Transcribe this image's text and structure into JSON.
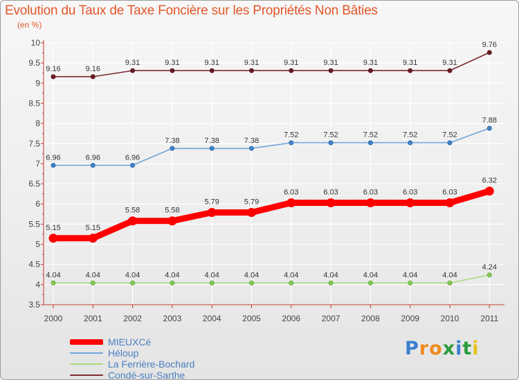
{
  "chart_data": {
    "type": "line",
    "title": "Evolution du Taux de Taxe Foncière sur les Propriétés Non Bâties",
    "unit_label": "(en %)",
    "xlabel": "",
    "ylabel": "",
    "categories": [
      "2000",
      "2001",
      "2002",
      "2003",
      "2004",
      "2005",
      "2006",
      "2007",
      "2008",
      "2009",
      "2010",
      "2011"
    ],
    "ylim": [
      3.5,
      10
    ],
    "yticks": [
      "3.5",
      "4",
      "4.5",
      "5",
      "5.5",
      "6",
      "6.5",
      "7",
      "7.5",
      "8",
      "8.5",
      "9",
      "9.5",
      "10"
    ],
    "grid": true,
    "legend_position": "bottom-left",
    "series": [
      {
        "name": "MIEUXCé",
        "color": "#ff0000",
        "emphasis": true,
        "values": [
          5.15,
          5.15,
          5.58,
          5.58,
          5.79,
          5.79,
          6.03,
          6.03,
          6.03,
          6.03,
          6.03,
          6.32
        ],
        "labels": [
          "5.15",
          "5.15",
          "5.58",
          "5.58",
          "5.79",
          "5.79",
          "6.03",
          "6.03",
          "6.03",
          "6.03",
          "6.03",
          "6.32"
        ]
      },
      {
        "name": "Héloup",
        "color": "#6fa5d8",
        "emphasis": false,
        "values": [
          6.96,
          6.96,
          6.96,
          7.38,
          7.38,
          7.38,
          7.52,
          7.52,
          7.52,
          7.52,
          7.52,
          7.88
        ],
        "labels": [
          "6.96",
          "6.96",
          "6.96",
          "7.38",
          "7.38",
          "7.38",
          "7.52",
          "7.52",
          "7.52",
          "7.52",
          "7.52",
          "7.88"
        ]
      },
      {
        "name": "La Ferrière-Bochard",
        "color": "#a6dc7e",
        "emphasis": false,
        "values": [
          4.04,
          4.04,
          4.04,
          4.04,
          4.04,
          4.04,
          4.04,
          4.04,
          4.04,
          4.04,
          4.04,
          4.24
        ],
        "labels": [
          "4.04",
          "4.04",
          "4.04",
          "4.04",
          "4.04",
          "4.04",
          "4.04",
          "4.04",
          "4.04",
          "4.04",
          "4.04",
          "4.24"
        ]
      },
      {
        "name": "Condé-sur-Sarthe",
        "color": "#7a2a2e",
        "emphasis": false,
        "values": [
          9.16,
          9.16,
          9.31,
          9.31,
          9.31,
          9.31,
          9.31,
          9.31,
          9.31,
          9.31,
          9.31,
          9.76
        ],
        "labels": [
          "9.16",
          "9.16",
          "9.31",
          "9.31",
          "9.31",
          "9.31",
          "9.31",
          "9.31",
          "9.31",
          "9.31",
          "9.31",
          "9.76"
        ]
      }
    ]
  },
  "brand": {
    "logo_letters": [
      "P",
      "r",
      "o",
      "x",
      "i",
      "t",
      "i"
    ],
    "logo_colors": [
      "#3a7fd0",
      "#f08a1c",
      "#f08a1c",
      "#2a9c3c",
      "#3a7fd0",
      "#2a9c3c",
      "#e8c21a"
    ]
  }
}
